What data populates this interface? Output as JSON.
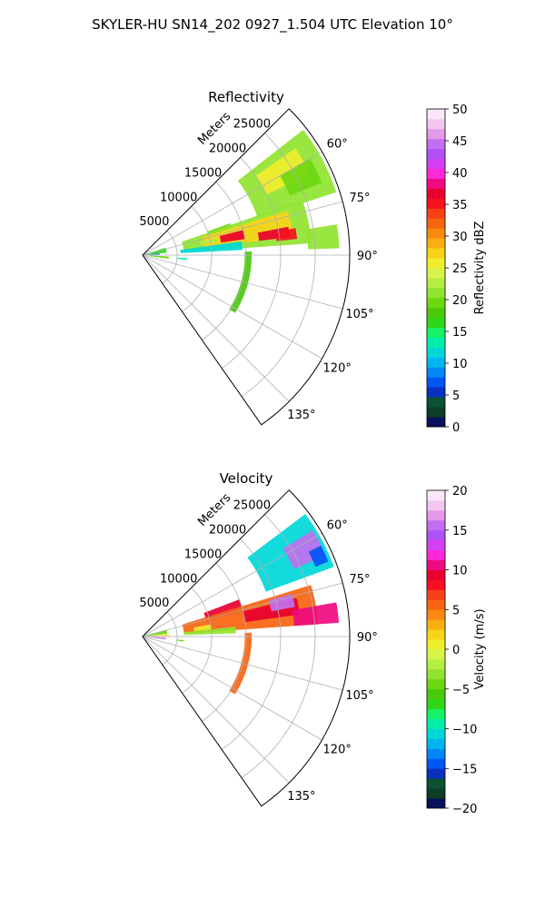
{
  "figure": {
    "suptitle": "SKYLER-HU  SN14_202  0927_1.504 UTC Elevation 10°"
  },
  "chart_data": [
    {
      "type": "heatmap",
      "projection": "polar-sector",
      "title": "Reflectivity",
      "range_label": "Meters",
      "range_ticks": [
        5000,
        10000,
        15000,
        20000,
        25000
      ],
      "range_tick_labels": [
        "5000",
        "10000",
        "15000",
        "20000",
        "25000"
      ],
      "range_max": 30000,
      "azimuth_range": [
        45,
        145
      ],
      "azimuth_ticks": [
        60,
        75,
        90,
        105,
        120,
        135
      ],
      "azimuth_tick_labels": [
        "60°",
        "75°",
        "90°",
        "105°",
        "120°",
        "135°"
      ],
      "grid": true,
      "colorbar": {
        "label": "Reflectivity dBZ",
        "min": 0,
        "max": 50,
        "ticks": [
          0,
          5,
          10,
          15,
          20,
          25,
          30,
          35,
          40,
          45,
          50
        ],
        "tick_labels": [
          "0",
          "5",
          "10",
          "15",
          "20",
          "25",
          "30",
          "35",
          "40",
          "45",
          "50"
        ],
        "colors": [
          "#07105a",
          "#0d3d26",
          "#0a5231",
          "#0b2fbe",
          "#0055f5",
          "#0088f8",
          "#00b5f0",
          "#00d8d8",
          "#00eea8",
          "#18f266",
          "#2ed818",
          "#4ac80c",
          "#6cd810",
          "#90e430",
          "#b4ee40",
          "#d6f44a",
          "#f0ee2c",
          "#f8d418",
          "#f8b010",
          "#f88a10",
          "#f86410",
          "#f84018",
          "#f61020",
          "#e8002e",
          "#f00a80",
          "#ff28d8",
          "#d640f4",
          "#b050f8",
          "#c070f0",
          "#e49ae8",
          "#f2c6f0",
          "#fae8fa"
        ]
      },
      "echoes": [
        {
          "az0": 52,
          "az1": 72,
          "r0": 17500,
          "r1": 29500,
          "value": 21
        },
        {
          "az0": 55,
          "az1": 64,
          "r0": 20000,
          "r1": 27000,
          "value": 25
        },
        {
          "az0": 60,
          "az1": 68,
          "r0": 23000,
          "r1": 28000,
          "value": 19
        },
        {
          "az0": 70,
          "az1": 76,
          "r0": 10000,
          "r1": 13500,
          "value": 19
        },
        {
          "az0": 71,
          "az1": 86,
          "r0": 6000,
          "r1": 24500,
          "value": 21
        },
        {
          "az0": 73,
          "az1": 83,
          "r0": 9000,
          "r1": 22000,
          "value": 27
        },
        {
          "az0": 76,
          "az1": 81,
          "r0": 11500,
          "r1": 15000,
          "value": 36
        },
        {
          "az0": 79,
          "az1": 83,
          "r0": 17000,
          "r1": 21500,
          "value": 37
        },
        {
          "az0": 80,
          "az1": 84,
          "r0": 19500,
          "r1": 22500,
          "value": 35
        },
        {
          "az0": 77,
          "az1": 80,
          "r0": 8500,
          "r1": 11000,
          "value": 23
        },
        {
          "az0": 81,
          "az1": 88,
          "r0": 24000,
          "r1": 28500,
          "value": 21
        },
        {
          "az0": 82,
          "az1": 87,
          "r0": 5500,
          "r1": 14500,
          "value": 11
        },
        {
          "az0": 72,
          "az1": 84,
          "r0": 300,
          "r1": 3500,
          "value": 17
        },
        {
          "az0": 84,
          "az1": 88,
          "r0": 400,
          "r1": 2500,
          "value": 8
        },
        {
          "az0": 93,
          "az1": 98,
          "r0": 1000,
          "r1": 3800,
          "value": 19
        },
        {
          "az0": 94,
          "az1": 96,
          "r0": 5000,
          "r1": 6500,
          "value": 13
        },
        {
          "az0": 88,
          "az1": 122,
          "r0": 14800,
          "r1": 15800,
          "value": 18
        }
      ]
    },
    {
      "type": "heatmap",
      "projection": "polar-sector",
      "title": "Velocity",
      "range_label": "Meters",
      "range_ticks": [
        5000,
        10000,
        15000,
        20000,
        25000
      ],
      "range_tick_labels": [
        "5000",
        "10000",
        "15000",
        "20000",
        "25000"
      ],
      "range_max": 30000,
      "azimuth_range": [
        45,
        145
      ],
      "azimuth_ticks": [
        60,
        75,
        90,
        105,
        120,
        135
      ],
      "azimuth_tick_labels": [
        "60°",
        "75°",
        "90°",
        "105°",
        "120°",
        "135°"
      ],
      "grid": true,
      "colorbar": {
        "label": "Velocity (m/s)",
        "min": -20,
        "max": 20,
        "ticks": [
          -20,
          -15,
          -10,
          -5,
          0,
          5,
          10,
          15,
          20
        ],
        "tick_labels": [
          "−20",
          "−15",
          "−10",
          "−5",
          "0",
          "5",
          "10",
          "15",
          "20"
        ],
        "colors": [
          "#07105a",
          "#0d3d26",
          "#0a5231",
          "#0b2fbe",
          "#0055f5",
          "#0088f8",
          "#00b5f0",
          "#00d8d8",
          "#00eea8",
          "#18f266",
          "#2ed818",
          "#4ac80c",
          "#6cd810",
          "#90e430",
          "#b4ee40",
          "#d6f44a",
          "#f0ee2c",
          "#f8d418",
          "#f8b010",
          "#f88a10",
          "#f86410",
          "#f84018",
          "#f61020",
          "#e8002e",
          "#f00a80",
          "#ff28d8",
          "#d640f4",
          "#b050f8",
          "#c070f0",
          "#e49ae8",
          "#f2c6f0",
          "#fae8fa"
        ]
      },
      "echoes": [
        {
          "az0": 53,
          "az1": 70,
          "r0": 19000,
          "r1": 29500,
          "value": -11
        },
        {
          "az0": 58,
          "az1": 66,
          "r0": 24000,
          "r1": 29000,
          "value": 16
        },
        {
          "az0": 63,
          "az1": 68,
          "r0": 27000,
          "r1": 29000,
          "value": -14
        },
        {
          "az0": 69,
          "az1": 76,
          "r0": 9500,
          "r1": 15000,
          "value": 9
        },
        {
          "az0": 73,
          "az1": 86,
          "r0": 6000,
          "r1": 25500,
          "value": 5
        },
        {
          "az0": 76,
          "az1": 82,
          "r0": 15000,
          "r1": 23000,
          "value": 9
        },
        {
          "az0": 74,
          "az1": 79,
          "r0": 19000,
          "r1": 22500,
          "value": 15
        },
        {
          "az0": 80,
          "az1": 86,
          "r0": 22000,
          "r1": 28500,
          "value": 10
        },
        {
          "az0": 80,
          "az1": 84,
          "r0": 7500,
          "r1": 10000,
          "value": 1
        },
        {
          "az0": 84,
          "az1": 88,
          "r0": 6000,
          "r1": 13500,
          "value": -3
        },
        {
          "az0": 74,
          "az1": 84,
          "r0": 300,
          "r1": 3600,
          "value": -5
        },
        {
          "az0": 86,
          "az1": 89,
          "r0": 600,
          "r1": 3800,
          "value": 2
        },
        {
          "az0": 93,
          "az1": 97,
          "r0": 800,
          "r1": 3400,
          "value": 16
        },
        {
          "az0": 95,
          "az1": 97,
          "r0": 5000,
          "r1": 6000,
          "value": -4
        },
        {
          "az0": 88,
          "az1": 122,
          "r0": 14800,
          "r1": 15800,
          "value": 6
        }
      ]
    }
  ]
}
